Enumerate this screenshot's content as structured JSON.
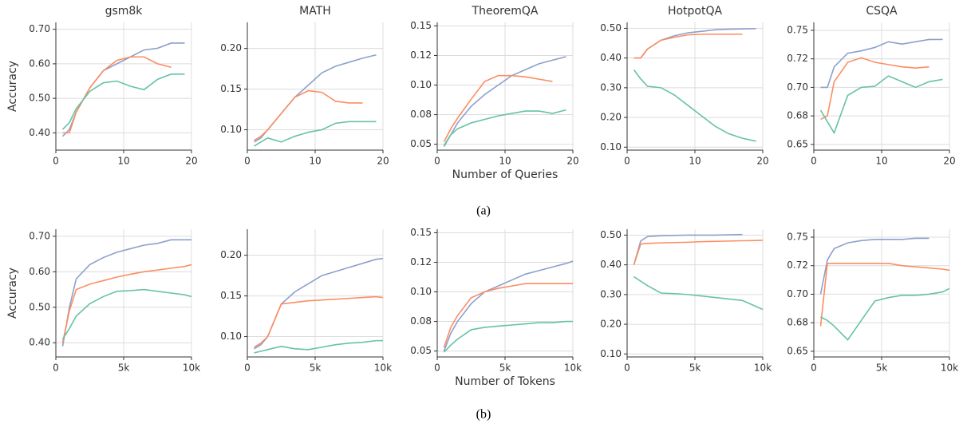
{
  "captions": [
    "(a)",
    "(b)"
  ],
  "chart_data": [
    {
      "type": "line",
      "title": "gsm8k",
      "ylabel": "Accuracy",
      "grid": true,
      "x": [
        1,
        2,
        3,
        5,
        7,
        9,
        11,
        13,
        15,
        17,
        19
      ],
      "xlim": [
        0,
        20
      ],
      "xticks": [
        0,
        10,
        20
      ],
      "ylim": [
        0.35,
        0.72
      ],
      "yticks": [
        {
          "value": 0.4,
          "label": "0.40"
        },
        {
          "value": 0.5,
          "label": "0.50"
        },
        {
          "value": 0.6,
          "label": "0.60"
        },
        {
          "value": 0.7,
          "label": "0.70"
        }
      ],
      "series": [
        {
          "color": "#8da0cb",
          "values": [
            0.39,
            0.41,
            0.46,
            0.53,
            0.58,
            0.6,
            0.62,
            0.64,
            0.645,
            0.66,
            0.66
          ]
        },
        {
          "color": "#fc8d62",
          "values": [
            0.4,
            0.4,
            0.46,
            0.53,
            0.58,
            0.61,
            0.62,
            0.62,
            0.6,
            0.59,
            null
          ]
        },
        {
          "color": "#66c2a5",
          "values": [
            0.41,
            0.43,
            0.47,
            0.52,
            0.545,
            0.55,
            0.535,
            0.525,
            0.555,
            0.57,
            0.57
          ]
        }
      ]
    },
    {
      "type": "line",
      "title": "MATH",
      "grid": true,
      "x": [
        1,
        2,
        3,
        5,
        7,
        9,
        11,
        13,
        15,
        17,
        19
      ],
      "xlim": [
        0,
        20
      ],
      "xticks": [
        0,
        10,
        20
      ],
      "ylim": [
        0.075,
        0.232
      ],
      "yticks": [
        {
          "value": 0.1,
          "label": "0.10"
        },
        0.15,
        {
          "value": 0.2,
          "label": "0.20"
        }
      ],
      "series": [
        {
          "color": "#8da0cb",
          "values": [
            0.085,
            0.09,
            0.1,
            0.12,
            0.14,
            0.155,
            0.17,
            0.178,
            0.183,
            0.188,
            0.192
          ]
        },
        {
          "color": "#fc8d62",
          "values": [
            0.087,
            0.092,
            0.1,
            0.12,
            0.14,
            0.148,
            0.146,
            0.135,
            0.133,
            0.133,
            null
          ]
        },
        {
          "color": "#66c2a5",
          "values": [
            0.08,
            0.085,
            0.09,
            0.085,
            0.092,
            0.097,
            0.1,
            0.108,
            0.11,
            0.11,
            0.11
          ]
        }
      ]
    },
    {
      "type": "line",
      "title": "TheoremQA",
      "xlabel": "Number of Queries",
      "grid": true,
      "x": [
        1,
        2,
        3,
        5,
        7,
        9,
        11,
        13,
        15,
        17,
        19
      ],
      "xlim": [
        0,
        20
      ],
      "xticks": [
        0,
        10,
        20
      ],
      "ylim": [
        0.045,
        0.153
      ],
      "yticks": [
        0.05,
        {
          "value": 0.075,
          "label": "0.08"
        },
        {
          "value": 0.1,
          "label": "0.10"
        },
        {
          "value": 0.125,
          "label": "0.12"
        },
        0.15
      ],
      "series": [
        {
          "color": "#8da0cb",
          "values": [
            0.048,
            0.058,
            0.068,
            0.082,
            0.092,
            0.1,
            0.108,
            0.113,
            0.118,
            0.121,
            0.124
          ]
        },
        {
          "color": "#fc8d62",
          "values": [
            0.052,
            0.063,
            0.072,
            0.088,
            0.103,
            0.108,
            0.108,
            0.107,
            0.105,
            0.103,
            null
          ]
        },
        {
          "color": "#66c2a5",
          "values": [
            0.049,
            0.058,
            0.063,
            0.068,
            0.071,
            0.074,
            0.076,
            0.078,
            0.078,
            0.076,
            0.079
          ]
        }
      ]
    },
    {
      "type": "line",
      "title": "HotpotQA",
      "grid": true,
      "x": [
        1,
        2,
        3,
        5,
        7,
        9,
        11,
        13,
        15,
        17,
        19
      ],
      "xlim": [
        0,
        20
      ],
      "xticks": [
        0,
        10,
        20
      ],
      "ylim": [
        0.09,
        0.52
      ],
      "yticks": [
        {
          "value": 0.1,
          "label": "0.10"
        },
        {
          "value": 0.2,
          "label": "0.20"
        },
        {
          "value": 0.3,
          "label": "0.30"
        },
        {
          "value": 0.4,
          "label": "0.40"
        },
        {
          "value": 0.5,
          "label": "0.50"
        }
      ],
      "series": [
        {
          "color": "#8da0cb",
          "values": [
            0.4,
            0.4,
            0.43,
            0.46,
            0.475,
            0.485,
            0.49,
            0.495,
            0.497,
            0.498,
            0.499
          ]
        },
        {
          "color": "#fc8d62",
          "values": [
            0.4,
            0.4,
            0.43,
            0.46,
            0.47,
            0.478,
            0.48,
            0.48,
            0.48,
            0.48,
            null
          ]
        },
        {
          "color": "#66c2a5",
          "values": [
            0.36,
            0.33,
            0.305,
            0.3,
            0.275,
            0.24,
            0.205,
            0.17,
            0.145,
            0.13,
            0.12
          ]
        }
      ]
    },
    {
      "type": "line",
      "title": "CSQA",
      "grid": true,
      "x": [
        1,
        2,
        3,
        5,
        7,
        9,
        11,
        13,
        15,
        17,
        19
      ],
      "xlim": [
        0,
        20
      ],
      "xticks": [
        0,
        10,
        20
      ],
      "ylim": [
        0.645,
        0.757
      ],
      "yticks": [
        0.65,
        {
          "value": 0.675,
          "label": "0.68"
        },
        {
          "value": 0.7,
          "label": "0.70"
        },
        {
          "value": 0.725,
          "label": "0.72"
        },
        0.75
      ],
      "series": [
        {
          "color": "#8da0cb",
          "values": [
            0.7,
            0.7,
            0.718,
            0.73,
            0.732,
            0.735,
            0.74,
            0.738,
            0.74,
            0.742,
            0.742
          ]
        },
        {
          "color": "#fc8d62",
          "values": [
            0.672,
            0.675,
            0.705,
            0.722,
            0.726,
            0.722,
            0.72,
            0.718,
            0.717,
            0.718,
            null
          ]
        },
        {
          "color": "#66c2a5",
          "values": [
            0.68,
            0.67,
            0.66,
            0.693,
            0.7,
            0.701,
            0.71,
            0.705,
            0.7,
            0.705,
            0.707
          ]
        }
      ]
    },
    {
      "type": "line",
      "ylabel": "Accuracy",
      "grid": true,
      "x": [
        500,
        1000,
        1500,
        2500,
        3500,
        4500,
        5500,
        6500,
        7500,
        8500,
        9500,
        10000
      ],
      "xlim": [
        0,
        10000
      ],
      "xticks": [
        0,
        {
          "value": 5000,
          "label": "5k"
        },
        {
          "value": 10000,
          "label": "10k"
        }
      ],
      "ylim": [
        0.36,
        0.72
      ],
      "yticks": [
        {
          "value": 0.4,
          "label": "0.40"
        },
        {
          "value": 0.5,
          "label": "0.50"
        },
        {
          "value": 0.6,
          "label": "0.60"
        },
        {
          "value": 0.7,
          "label": "0.70"
        }
      ],
      "series": [
        {
          "color": "#8da0cb",
          "values": [
            0.39,
            0.5,
            0.58,
            0.62,
            0.64,
            0.655,
            0.665,
            0.675,
            0.68,
            0.69,
            0.69,
            0.69
          ]
        },
        {
          "color": "#fc8d62",
          "values": [
            0.4,
            0.49,
            0.55,
            0.565,
            0.575,
            0.585,
            0.593,
            0.6,
            0.605,
            0.61,
            0.615,
            0.62
          ]
        },
        {
          "color": "#66c2a5",
          "values": [
            0.41,
            0.44,
            0.475,
            0.51,
            0.53,
            0.545,
            0.547,
            0.55,
            0.545,
            0.54,
            0.535,
            0.53
          ]
        }
      ]
    },
    {
      "type": "line",
      "grid": true,
      "x": [
        500,
        1000,
        1500,
        2500,
        3500,
        4500,
        5500,
        6500,
        7500,
        8500,
        9500,
        10000
      ],
      "xlim": [
        0,
        10000
      ],
      "xticks": [
        0,
        {
          "value": 5000,
          "label": "5k"
        },
        {
          "value": 10000,
          "label": "10k"
        }
      ],
      "ylim": [
        0.075,
        0.232
      ],
      "yticks": [
        {
          "value": 0.1,
          "label": "0.10"
        },
        0.15,
        {
          "value": 0.2,
          "label": "0.20"
        }
      ],
      "series": [
        {
          "color": "#8da0cb",
          "values": [
            0.085,
            0.09,
            0.1,
            0.14,
            0.155,
            0.165,
            0.175,
            0.18,
            0.185,
            0.19,
            0.195,
            0.196
          ]
        },
        {
          "color": "#fc8d62",
          "values": [
            0.087,
            0.092,
            0.1,
            0.14,
            0.142,
            0.144,
            0.145,
            0.146,
            0.147,
            0.148,
            0.149,
            0.148
          ]
        },
        {
          "color": "#66c2a5",
          "values": [
            0.08,
            0.082,
            0.084,
            0.088,
            0.085,
            0.084,
            0.087,
            0.09,
            0.092,
            0.093,
            0.095,
            0.095
          ]
        }
      ]
    },
    {
      "type": "line",
      "xlabel": "Number of Tokens",
      "grid": true,
      "x": [
        500,
        1000,
        1500,
        2500,
        3500,
        4500,
        5500,
        6500,
        7500,
        8500,
        9500,
        10000
      ],
      "xlim": [
        0,
        10000
      ],
      "xticks": [
        0,
        {
          "value": 5000,
          "label": "5k"
        },
        {
          "value": 10000,
          "label": "10k"
        }
      ],
      "ylim": [
        0.045,
        0.153
      ],
      "yticks": [
        0.05,
        {
          "value": 0.075,
          "label": "0.08"
        },
        {
          "value": 0.1,
          "label": "0.10"
        },
        {
          "value": 0.125,
          "label": "0.12"
        },
        0.15
      ],
      "series": [
        {
          "color": "#8da0cb",
          "values": [
            0.05,
            0.065,
            0.075,
            0.09,
            0.1,
            0.105,
            0.11,
            0.115,
            0.118,
            0.121,
            0.124,
            0.126
          ]
        },
        {
          "color": "#fc8d62",
          "values": [
            0.053,
            0.07,
            0.08,
            0.095,
            0.1,
            0.103,
            0.105,
            0.107,
            0.107,
            0.107,
            0.107,
            0.107
          ]
        },
        {
          "color": "#66c2a5",
          "values": [
            0.049,
            0.055,
            0.06,
            0.068,
            0.07,
            0.071,
            0.072,
            0.073,
            0.074,
            0.074,
            0.075,
            0.075
          ]
        }
      ]
    },
    {
      "type": "line",
      "grid": true,
      "x": [
        500,
        1000,
        1500,
        2500,
        3500,
        4500,
        5500,
        6500,
        7500,
        8500,
        9500,
        10000
      ],
      "xlim": [
        0,
        10000
      ],
      "xticks": [
        0,
        {
          "value": 5000,
          "label": "5k"
        },
        {
          "value": 10000,
          "label": "10k"
        }
      ],
      "ylim": [
        0.09,
        0.52
      ],
      "yticks": [
        {
          "value": 0.1,
          "label": "0.10"
        },
        {
          "value": 0.2,
          "label": "0.20"
        },
        {
          "value": 0.3,
          "label": "0.30"
        },
        {
          "value": 0.4,
          "label": "0.40"
        },
        {
          "value": 0.5,
          "label": "0.50"
        }
      ],
      "series": [
        {
          "color": "#8da0cb",
          "values": [
            0.4,
            0.48,
            0.495,
            0.498,
            0.499,
            0.5,
            0.5,
            0.5,
            0.501,
            0.502,
            null,
            null
          ]
        },
        {
          "color": "#fc8d62",
          "values": [
            0.4,
            0.47,
            0.472,
            0.474,
            0.475,
            0.476,
            0.478,
            0.479,
            0.48,
            0.481,
            0.482,
            0.483
          ]
        },
        {
          "color": "#66c2a5",
          "values": [
            0.36,
            0.345,
            0.33,
            0.305,
            0.303,
            0.3,
            0.295,
            0.29,
            0.285,
            0.28,
            0.26,
            0.25
          ]
        }
      ]
    },
    {
      "type": "line",
      "grid": true,
      "x": [
        500,
        1000,
        1500,
        2500,
        3500,
        4500,
        5500,
        6500,
        7500,
        8500,
        9500,
        10000
      ],
      "xlim": [
        0,
        10000
      ],
      "xticks": [
        0,
        {
          "value": 5000,
          "label": "5k"
        },
        {
          "value": 10000,
          "label": "10k"
        }
      ],
      "ylim": [
        0.645,
        0.757
      ],
      "yticks": [
        0.65,
        {
          "value": 0.675,
          "label": "0.68"
        },
        {
          "value": 0.7,
          "label": "0.70"
        },
        {
          "value": 0.725,
          "label": "0.72"
        },
        0.75
      ],
      "series": [
        {
          "color": "#8da0cb",
          "values": [
            0.7,
            0.73,
            0.74,
            0.745,
            0.747,
            0.748,
            0.748,
            0.748,
            0.749,
            0.749,
            null,
            null
          ]
        },
        {
          "color": "#fc8d62",
          "values": [
            0.672,
            0.727,
            0.727,
            0.727,
            0.727,
            0.727,
            0.727,
            0.725,
            0.724,
            0.723,
            0.722,
            0.721
          ]
        },
        {
          "color": "#66c2a5",
          "values": [
            0.68,
            0.677,
            0.672,
            0.66,
            0.677,
            0.694,
            0.697,
            0.699,
            0.699,
            0.7,
            0.702,
            0.705
          ]
        }
      ]
    }
  ]
}
